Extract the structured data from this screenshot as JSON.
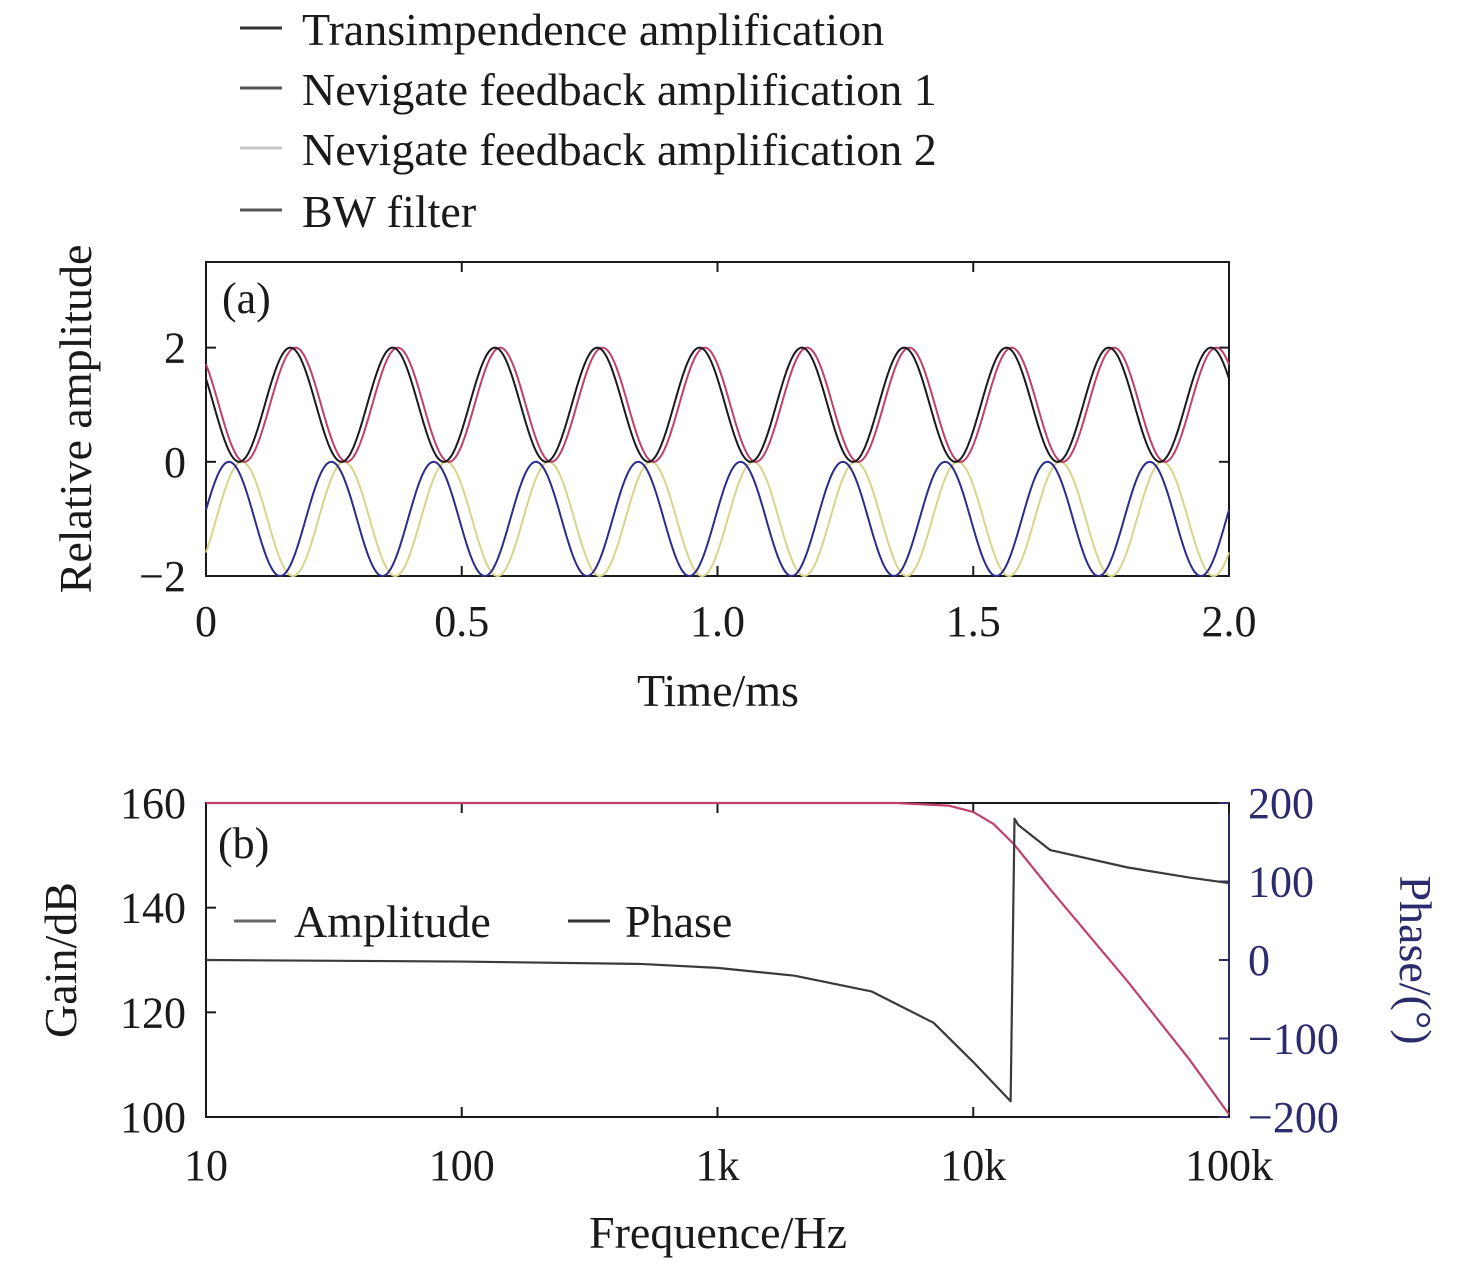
{
  "legend_a": [
    {
      "name": "Transimpendence amplification",
      "color": "#333333"
    },
    {
      "name": "Nevigate feedback amplification 1",
      "color": "#555555"
    },
    {
      "name": "Nevigate feedback amplification 2",
      "color": "#c8c8c8"
    },
    {
      "name": "BW filter",
      "color": "#555555"
    }
  ],
  "chart_data": [
    {
      "type": "line",
      "panel_label": "(a)",
      "xlabel": "Time/ms",
      "ylabel": "Relative amplitude",
      "xlim": [
        0,
        2.0
      ],
      "ylim": [
        -2,
        3.5
      ],
      "xticks": [
        0,
        0.5,
        1.0,
        1.5,
        2.0
      ],
      "xtick_labels": [
        "0",
        "0.5",
        "1.0",
        "1.5",
        "2.0"
      ],
      "yticks": [
        -2,
        0,
        2
      ],
      "ytick_labels": [
        "−2",
        "0",
        "2"
      ],
      "grid": false,
      "legend_position": "top-outside",
      "series": [
        {
          "name": "Transimpendence amplification",
          "color": "#1a1a1a",
          "shape": "sine",
          "offset": 1,
          "amplitude": 1,
          "period_ms": 0.2,
          "peak_at_ms": 0.165,
          "x": [
            0,
            0.065,
            0.165,
            0.265,
            0.365,
            0.465,
            0.565,
            0.665,
            0.765,
            0.865,
            0.965,
            1.065,
            1.165,
            1.265,
            1.365,
            1.465,
            1.565,
            1.665,
            1.765,
            1.865,
            1.965,
            2.0
          ],
          "y": [
            1.3,
            0,
            2,
            0,
            2,
            0,
            2,
            0,
            2,
            0,
            2,
            0,
            2,
            0,
            2,
            0,
            2,
            0,
            2,
            0,
            2,
            1.8
          ]
        },
        {
          "name": "Nevigate feedback amplification 1",
          "color": "#c0406a",
          "shape": "sine",
          "offset": 1,
          "amplitude": 1,
          "period_ms": 0.2,
          "peak_at_ms": 0.175,
          "x": [
            0,
            0.075,
            0.175,
            0.275,
            0.375,
            0.475,
            0.575,
            0.675,
            0.775,
            0.875,
            0.975,
            1.075,
            1.175,
            1.275,
            1.375,
            1.475,
            1.575,
            1.675,
            1.775,
            1.875,
            1.975,
            2.0
          ],
          "y": [
            1.2,
            0,
            2,
            0,
            2,
            0,
            2,
            0,
            2,
            0,
            2,
            0,
            2,
            0,
            2,
            0,
            2,
            0,
            2,
            0,
            2,
            1.85
          ]
        },
        {
          "name": "Nevigate feedback amplification 2",
          "color": "#d8d48a",
          "shape": "sine",
          "offset": -1,
          "amplitude": 1,
          "period_ms": 0.2,
          "peak_at_ms": 0.07,
          "x": [
            0,
            0.07,
            0.17,
            0.27,
            0.37,
            0.47,
            0.57,
            0.67,
            0.77,
            0.87,
            0.97,
            1.07,
            1.17,
            1.27,
            1.37,
            1.47,
            1.57,
            1.67,
            1.77,
            1.87,
            1.97,
            2.0
          ],
          "y": [
            -1.3,
            0,
            -2,
            0,
            -2,
            0,
            -2,
            0,
            -2,
            0,
            -2,
            0,
            -2,
            0,
            -2,
            0,
            -2,
            0,
            -2,
            0,
            -2,
            -1.8
          ]
        },
        {
          "name": "BW filter",
          "color": "#2b2b8c",
          "shape": "sine",
          "offset": -1,
          "amplitude": 1,
          "period_ms": 0.2,
          "peak_at_ms": 0.045,
          "x": [
            0,
            0.045,
            0.145,
            0.245,
            0.345,
            0.445,
            0.545,
            0.645,
            0.745,
            0.845,
            0.945,
            1.045,
            1.145,
            1.245,
            1.345,
            1.445,
            1.545,
            1.645,
            1.745,
            1.845,
            1.945,
            2.0
          ],
          "y": [
            -0.7,
            0,
            -2,
            0,
            -2,
            0,
            -2,
            0,
            -2,
            0,
            -2,
            0,
            -2,
            0,
            -2,
            0,
            -2,
            0,
            -2,
            0,
            -2,
            -1.1
          ]
        }
      ]
    },
    {
      "type": "line",
      "panel_label": "(b)",
      "xlabel": "Frequence/Hz",
      "ylabel": "Gain/dB",
      "y2label": "Phase/(°)",
      "xscale": "log",
      "xlim": [
        10,
        100000
      ],
      "ylim": [
        100,
        160
      ],
      "y2lim": [
        -200,
        200
      ],
      "xticks": [
        10,
        100,
        1000,
        10000,
        100000
      ],
      "xtick_labels": [
        "10",
        "100",
        "1k",
        "10k",
        "100k"
      ],
      "yticks": [
        100,
        120,
        140,
        160
      ],
      "ytick_labels": [
        "100",
        "120",
        "140",
        "160"
      ],
      "y2ticks": [
        -200,
        -100,
        0,
        100,
        200
      ],
      "y2tick_labels": [
        "−200",
        "−100",
        "0",
        "100",
        "200"
      ],
      "y2_color": "#2b2b6e",
      "grid": false,
      "legend_position": "left-inside",
      "series": [
        {
          "name": "Amplitude",
          "axis": "left",
          "color": "#c0406a",
          "legend_color": "#666666",
          "x": [
            10,
            1000,
            5000,
            8000,
            10000,
            12000,
            14500,
            20000,
            40000,
            70000,
            100000
          ],
          "y": [
            160,
            160,
            160,
            159.5,
            158.3,
            156,
            152,
            143.5,
            126,
            111,
            100.5
          ]
        },
        {
          "name": "Phase",
          "axis": "right",
          "color": "#3a3a3a",
          "legend_color": "#333333",
          "x": [
            10,
            100,
            500,
            1000,
            2000,
            4000,
            7000,
            10000,
            14000,
            14500,
            15000,
            20000,
            40000,
            70000,
            100000
          ],
          "y": [
            0,
            -2,
            -5,
            -10,
            -20,
            -40,
            -80,
            -130,
            -180,
            180,
            172,
            140,
            118,
            105,
            98
          ]
        }
      ]
    }
  ]
}
